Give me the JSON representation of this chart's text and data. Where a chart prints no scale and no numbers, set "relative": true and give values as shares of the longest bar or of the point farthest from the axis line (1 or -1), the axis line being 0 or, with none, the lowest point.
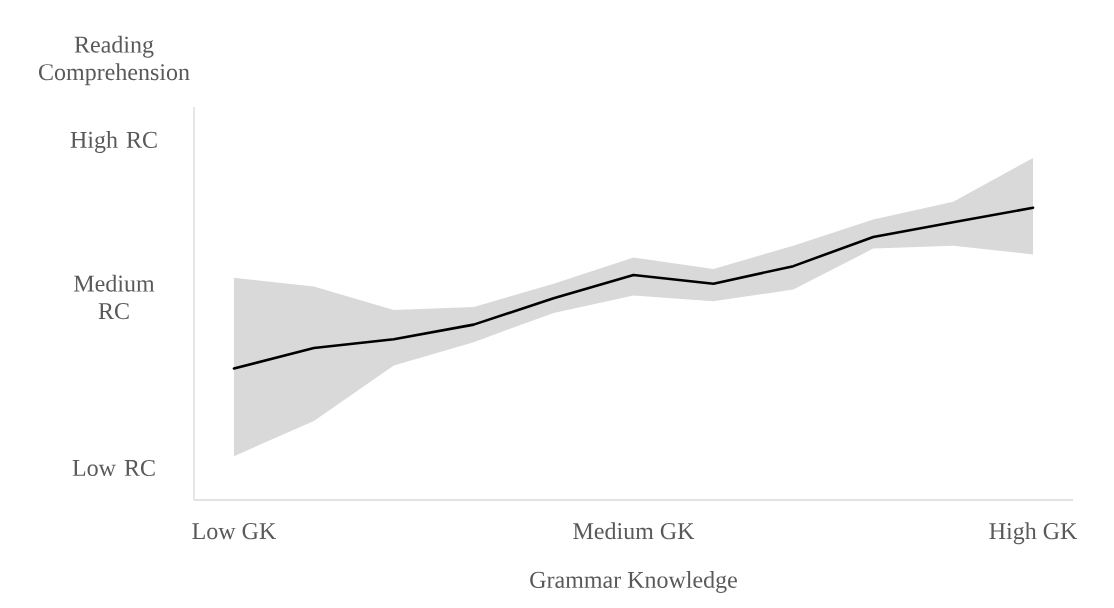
{
  "chart_data": {
    "type": "line",
    "xlabel": "Grammar Knowledge",
    "categories": [
      "Low GK",
      null,
      null,
      null,
      null,
      "Medium GK",
      null,
      null,
      null,
      null,
      "High GK"
    ],
    "relative": true,
    "annotations": [
      "Reading Comprehension",
      "High RC",
      "Medium RC",
      "Low RC"
    ],
    "marker": "none",
    "line_style": "solid",
    "series": [
      {
        "color": "#000000",
        "values": [
          0.45,
          0.52,
          0.55,
          0.6,
          0.69,
          0.77,
          0.74,
          0.8,
          0.9,
          0.95,
          1.0
        ],
        "lower": [
          0.15,
          0.27,
          0.46,
          0.54,
          0.64,
          0.7,
          0.68,
          0.72,
          0.86,
          0.87,
          0.84
        ],
        "upper": [
          0.76,
          0.73,
          0.65,
          0.66,
          0.74,
          0.83,
          0.79,
          0.87,
          0.96,
          1.02,
          1.17
        ]
      }
    ]
  }
}
